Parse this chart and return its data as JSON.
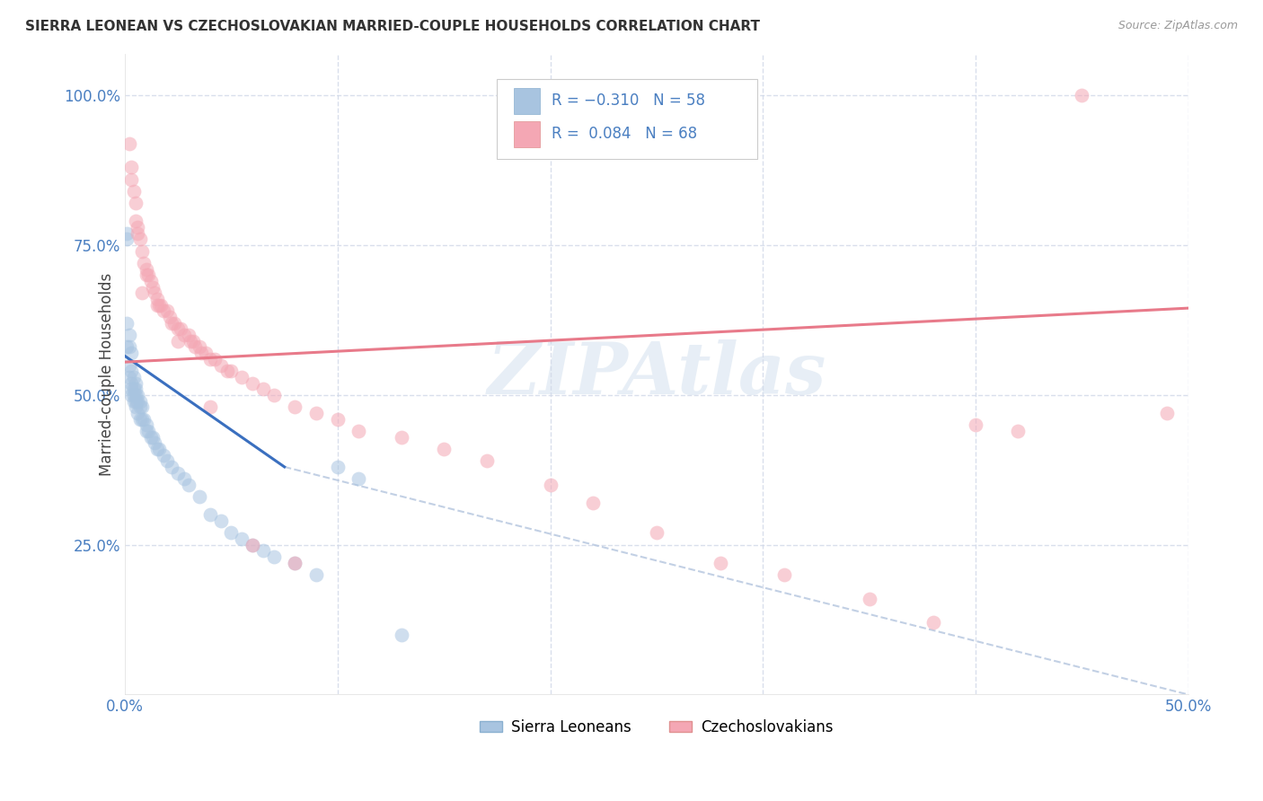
{
  "title": "SIERRA LEONEAN VS CZECHOSLOVAKIAN MARRIED-COUPLE HOUSEHOLDS CORRELATION CHART",
  "source": "Source: ZipAtlas.com",
  "ylabel": "Married-couple Households",
  "sierra_color": "#a8c4e0",
  "czech_color": "#f4a7b4",
  "sierra_line_color": "#3a6fbf",
  "czech_line_color": "#e87a8a",
  "dashed_line_color": "#b8c8e0",
  "background_color": "#ffffff",
  "grid_color": "#d0d8e8",
  "sierra_points_x": [
    0.001,
    0.001,
    0.001,
    0.001,
    0.002,
    0.002,
    0.002,
    0.002,
    0.003,
    0.003,
    0.003,
    0.003,
    0.003,
    0.004,
    0.004,
    0.004,
    0.004,
    0.005,
    0.005,
    0.005,
    0.005,
    0.005,
    0.006,
    0.006,
    0.006,
    0.007,
    0.007,
    0.007,
    0.008,
    0.008,
    0.009,
    0.01,
    0.01,
    0.011,
    0.012,
    0.013,
    0.014,
    0.015,
    0.016,
    0.018,
    0.02,
    0.022,
    0.025,
    0.028,
    0.03,
    0.035,
    0.04,
    0.045,
    0.05,
    0.055,
    0.06,
    0.065,
    0.07,
    0.08,
    0.09,
    0.1,
    0.11,
    0.13
  ],
  "sierra_points_y": [
    0.77,
    0.76,
    0.62,
    0.58,
    0.6,
    0.58,
    0.55,
    0.53,
    0.57,
    0.54,
    0.52,
    0.51,
    0.5,
    0.53,
    0.51,
    0.5,
    0.49,
    0.52,
    0.51,
    0.5,
    0.49,
    0.48,
    0.5,
    0.49,
    0.47,
    0.49,
    0.48,
    0.46,
    0.48,
    0.46,
    0.46,
    0.45,
    0.44,
    0.44,
    0.43,
    0.43,
    0.42,
    0.41,
    0.41,
    0.4,
    0.39,
    0.38,
    0.37,
    0.36,
    0.35,
    0.33,
    0.3,
    0.29,
    0.27,
    0.26,
    0.25,
    0.24,
    0.23,
    0.22,
    0.2,
    0.38,
    0.36,
    0.1
  ],
  "czech_points_x": [
    0.002,
    0.003,
    0.004,
    0.005,
    0.005,
    0.006,
    0.006,
    0.007,
    0.008,
    0.009,
    0.01,
    0.01,
    0.011,
    0.012,
    0.013,
    0.014,
    0.015,
    0.016,
    0.017,
    0.018,
    0.02,
    0.021,
    0.022,
    0.023,
    0.025,
    0.026,
    0.028,
    0.03,
    0.031,
    0.032,
    0.033,
    0.035,
    0.036,
    0.038,
    0.04,
    0.042,
    0.045,
    0.048,
    0.05,
    0.055,
    0.06,
    0.065,
    0.07,
    0.08,
    0.09,
    0.1,
    0.11,
    0.13,
    0.15,
    0.17,
    0.2,
    0.22,
    0.25,
    0.28,
    0.31,
    0.35,
    0.38,
    0.4,
    0.42,
    0.45,
    0.49,
    0.003,
    0.008,
    0.015,
    0.025,
    0.04,
    0.06,
    0.08
  ],
  "czech_points_y": [
    0.92,
    0.88,
    0.84,
    0.82,
    0.79,
    0.78,
    0.77,
    0.76,
    0.74,
    0.72,
    0.71,
    0.7,
    0.7,
    0.69,
    0.68,
    0.67,
    0.66,
    0.65,
    0.65,
    0.64,
    0.64,
    0.63,
    0.62,
    0.62,
    0.61,
    0.61,
    0.6,
    0.6,
    0.59,
    0.59,
    0.58,
    0.58,
    0.57,
    0.57,
    0.56,
    0.56,
    0.55,
    0.54,
    0.54,
    0.53,
    0.52,
    0.51,
    0.5,
    0.48,
    0.47,
    0.46,
    0.44,
    0.43,
    0.41,
    0.39,
    0.35,
    0.32,
    0.27,
    0.22,
    0.2,
    0.16,
    0.12,
    0.45,
    0.44,
    1.0,
    0.47,
    0.86,
    0.67,
    0.65,
    0.59,
    0.48,
    0.25,
    0.22
  ],
  "xlim": [
    0.0,
    0.5
  ],
  "ylim": [
    0.0,
    1.05
  ],
  "sierra_line_x": [
    0.0,
    0.075
  ],
  "sierra_line_y": [
    0.565,
    0.38
  ],
  "czech_line_x": [
    0.0,
    0.5
  ],
  "czech_line_y": [
    0.555,
    0.645
  ],
  "dashed_line_x": [
    0.075,
    0.5
  ],
  "dashed_line_y": [
    0.38,
    0.0
  ]
}
